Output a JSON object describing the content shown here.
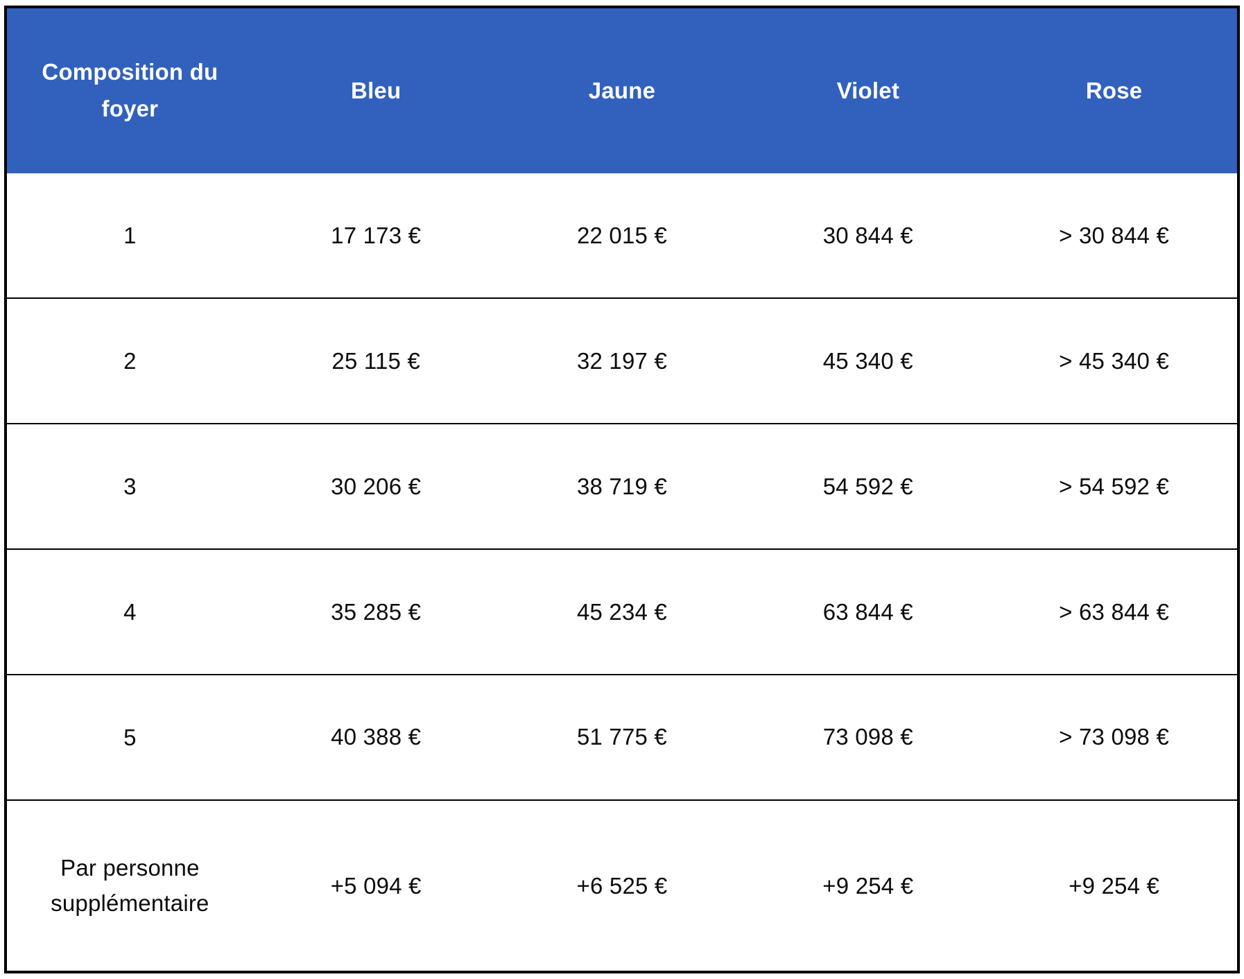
{
  "chart_data": {
    "type": "table",
    "title": "",
    "columns": [
      "Composition du foyer",
      "Bleu",
      "Jaune",
      "Violet",
      "Rose"
    ],
    "rows": [
      [
        "1",
        "17 173 €",
        "22 015 €",
        "30 844 €",
        "> 30 844 €"
      ],
      [
        "2",
        "25 115 €",
        "32 197 €",
        "45 340 €",
        "> 45 340 €"
      ],
      [
        "3",
        "30 206 €",
        "38 719 €",
        "54 592 €",
        "> 54 592 €"
      ],
      [
        "4",
        "35 285 €",
        "45 234 €",
        "63 844 €",
        "> 63 844 €"
      ],
      [
        "5",
        "40 388 €",
        "51 775 €",
        "73 098 €",
        "> 73 098 €"
      ],
      [
        "Par personne supplémentaire",
        "+5 094 €",
        "+6 525 €",
        "+9 254 €",
        "+9 254 €"
      ]
    ],
    "layout": {
      "header_position": "top",
      "grid": "horizontal-row-separators-only",
      "outer_border": true
    }
  },
  "colors": {
    "header_bg": "#3161bd",
    "header_text": "#ffffff",
    "body_text": "#0c0c0c",
    "border": "#000000"
  }
}
